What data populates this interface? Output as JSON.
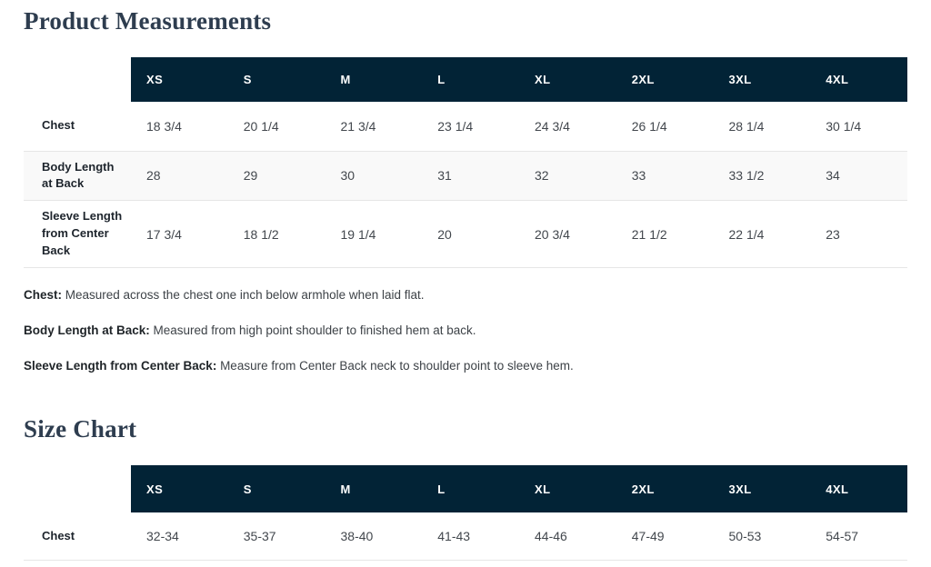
{
  "titles": {
    "product_measurements": "Product Measurements",
    "size_chart": "Size Chart"
  },
  "colors": {
    "header_bg": "#022336",
    "title_text": "#2e3d4f",
    "row_stripe": "#f9f9f9",
    "row_border": "#e6e6e6"
  },
  "measurements_table": {
    "sizes": [
      "XS",
      "S",
      "M",
      "L",
      "XL",
      "2XL",
      "3XL",
      "4XL"
    ],
    "rows": [
      {
        "label": "Chest",
        "values": [
          "18 3/4",
          "20 1/4",
          "21 3/4",
          "23 1/4",
          "24 3/4",
          "26 1/4",
          "28 1/4",
          "30 1/4"
        ]
      },
      {
        "label": "Body Length at Back",
        "values": [
          "28",
          "29",
          "30",
          "31",
          "32",
          "33",
          "33 1/2",
          "34"
        ]
      },
      {
        "label": "Sleeve Length from Center Back",
        "values": [
          "17 3/4",
          "18 1/2",
          "19 1/4",
          "20",
          "20 3/4",
          "21 1/2",
          "22 1/4",
          "23"
        ]
      }
    ]
  },
  "definitions": [
    {
      "term": "Chest:",
      "text": " Measured across the chest one inch below armhole when laid flat."
    },
    {
      "term": "Body Length at Back:",
      "text": " Measured from high point shoulder to finished hem at back."
    },
    {
      "term": "Sleeve Length from Center Back:",
      "text": " Measure from Center Back neck to shoulder point to sleeve hem."
    }
  ],
  "size_chart_table": {
    "sizes": [
      "XS",
      "S",
      "M",
      "L",
      "XL",
      "2XL",
      "3XL",
      "4XL"
    ],
    "rows": [
      {
        "label": "Chest",
        "values": [
          "32-34",
          "35-37",
          "38-40",
          "41-43",
          "44-46",
          "47-49",
          "50-53",
          "54-57"
        ]
      }
    ]
  }
}
